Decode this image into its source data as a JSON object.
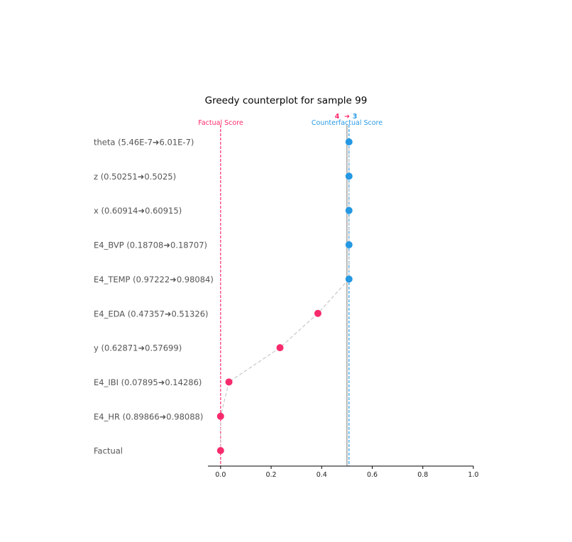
{
  "chart_data": {
    "type": "scatter",
    "title": "Greedy counterplot for sample 99",
    "xlabel": "",
    "ylabel": "",
    "xlim": [
      -0.05,
      1.0
    ],
    "xticks": [
      "0.0",
      "0.2",
      "0.4",
      "0.6",
      "0.8",
      "1.0"
    ],
    "xtick_values": [
      0.0,
      0.2,
      0.4,
      0.6,
      0.8,
      1.0
    ],
    "rows": [
      {
        "label": "theta (5.46E-7➜6.01E-7)",
        "score": 0.508,
        "counterfactual": true
      },
      {
        "label": "z (0.50251➜0.5025)",
        "score": 0.508,
        "counterfactual": true
      },
      {
        "label": "x (0.60914➜0.60915)",
        "score": 0.508,
        "counterfactual": true
      },
      {
        "label": "E4_BVP (0.18708➜0.18707)",
        "score": 0.508,
        "counterfactual": true
      },
      {
        "label": "E4_TEMP (0.97222➜0.98084)",
        "score": 0.508,
        "counterfactual": true
      },
      {
        "label": "E4_EDA (0.47357➜0.51326)",
        "score": 0.385,
        "counterfactual": false
      },
      {
        "label": "y (0.62871➜0.57699)",
        "score": 0.235,
        "counterfactual": false
      },
      {
        "label": "E4_IBI (0.07895➜0.14286)",
        "score": 0.033,
        "counterfactual": false
      },
      {
        "label": "E4_HR (0.89866➜0.98088)",
        "score": 0.0,
        "counterfactual": false
      },
      {
        "label": "Factual",
        "score": 0.0,
        "counterfactual": false
      }
    ],
    "reference_lines": {
      "factual_score": {
        "value": 0.0,
        "label": "Factual Score",
        "color": "#ff2a6a"
      },
      "threshold": {
        "value": 0.5,
        "color": "#777777"
      },
      "counterfactual_score": {
        "value": 0.508,
        "label": "Counterfactual Score",
        "color": "#2a9be6"
      }
    },
    "class_change": {
      "from": "4",
      "arrow": "➜",
      "to": "3",
      "from_color": "#ff2a6a",
      "to_color": "#2a9be6"
    },
    "colors": {
      "factual": "#f72a6c",
      "counterfactual": "#2598e3",
      "path": "#c8c8c8"
    },
    "grid": false
  }
}
